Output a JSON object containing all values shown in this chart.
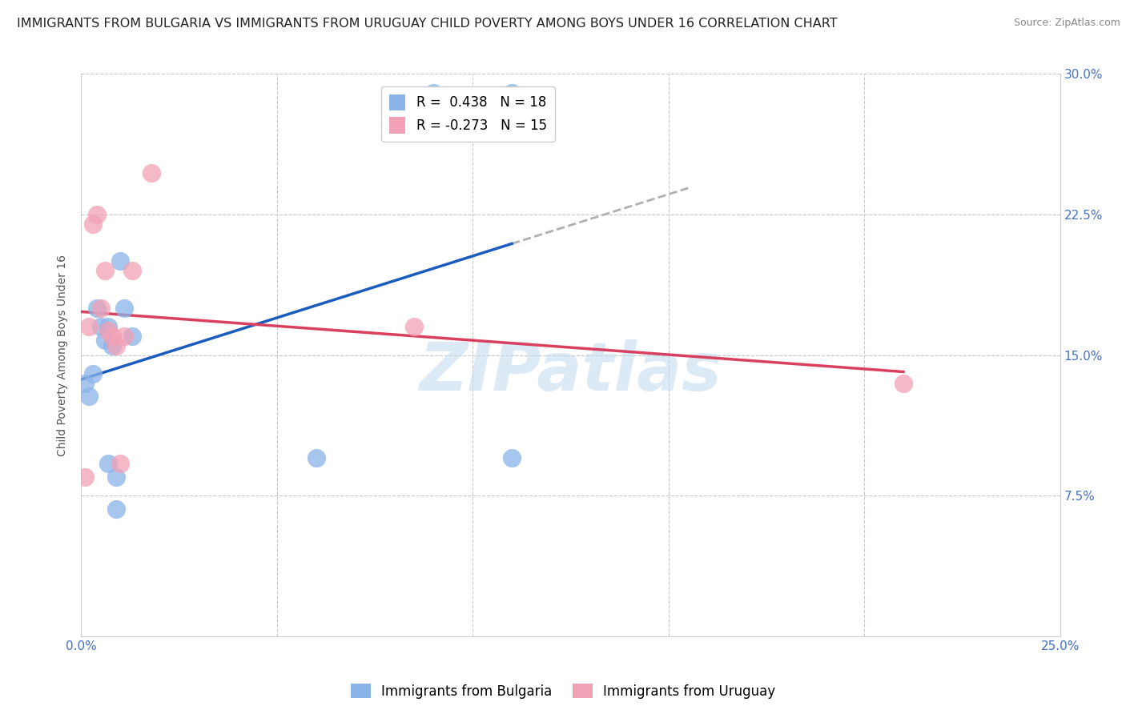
{
  "title": "IMMIGRANTS FROM BULGARIA VS IMMIGRANTS FROM URUGUAY CHILD POVERTY AMONG BOYS UNDER 16 CORRELATION CHART",
  "source": "Source: ZipAtlas.com",
  "ylabel": "Child Poverty Among Boys Under 16",
  "xlim": [
    0,
    0.25
  ],
  "ylim": [
    0,
    0.3
  ],
  "xticks": [
    0.0,
    0.05,
    0.1,
    0.15,
    0.2,
    0.25
  ],
  "yticks": [
    0.0,
    0.075,
    0.15,
    0.225,
    0.3
  ],
  "xticklabels": [
    "0.0%",
    "",
    "",
    "",
    "",
    "25.0%"
  ],
  "yticklabels": [
    "",
    "7.5%",
    "15.0%",
    "22.5%",
    "30.0%"
  ],
  "bulgaria_R": 0.438,
  "bulgaria_N": 18,
  "uruguay_R": -0.273,
  "uruguay_N": 15,
  "bulgaria_color": "#8ab4e8",
  "uruguay_color": "#f2a0b5",
  "trendline_bulgaria_color": "#1a5bbf",
  "trendline_uruguay_color": "#d94060",
  "watermark": "ZIPatlas",
  "bulgaria_x": [
    0.001,
    0.002,
    0.003,
    0.004,
    0.005,
    0.006,
    0.007,
    0.007,
    0.008,
    0.009,
    0.009,
    0.01,
    0.011,
    0.013,
    0.06,
    0.09,
    0.11,
    0.11
  ],
  "bulgaria_y": [
    0.135,
    0.128,
    0.14,
    0.175,
    0.165,
    0.158,
    0.165,
    0.092,
    0.155,
    0.085,
    0.068,
    0.2,
    0.175,
    0.16,
    0.095,
    0.29,
    0.095,
    0.29
  ],
  "uruguay_x": [
    0.001,
    0.002,
    0.003,
    0.004,
    0.005,
    0.006,
    0.007,
    0.008,
    0.009,
    0.01,
    0.011,
    0.013,
    0.018,
    0.085,
    0.21
  ],
  "uruguay_y": [
    0.085,
    0.165,
    0.22,
    0.225,
    0.175,
    0.195,
    0.163,
    0.16,
    0.155,
    0.092,
    0.16,
    0.195,
    0.247,
    0.165,
    0.135
  ],
  "axis_color": "#4472c4",
  "grid_color": "#c8c8c8",
  "title_fontsize": 11.5,
  "label_fontsize": 10,
  "tick_fontsize": 11,
  "legend_fontsize": 12
}
